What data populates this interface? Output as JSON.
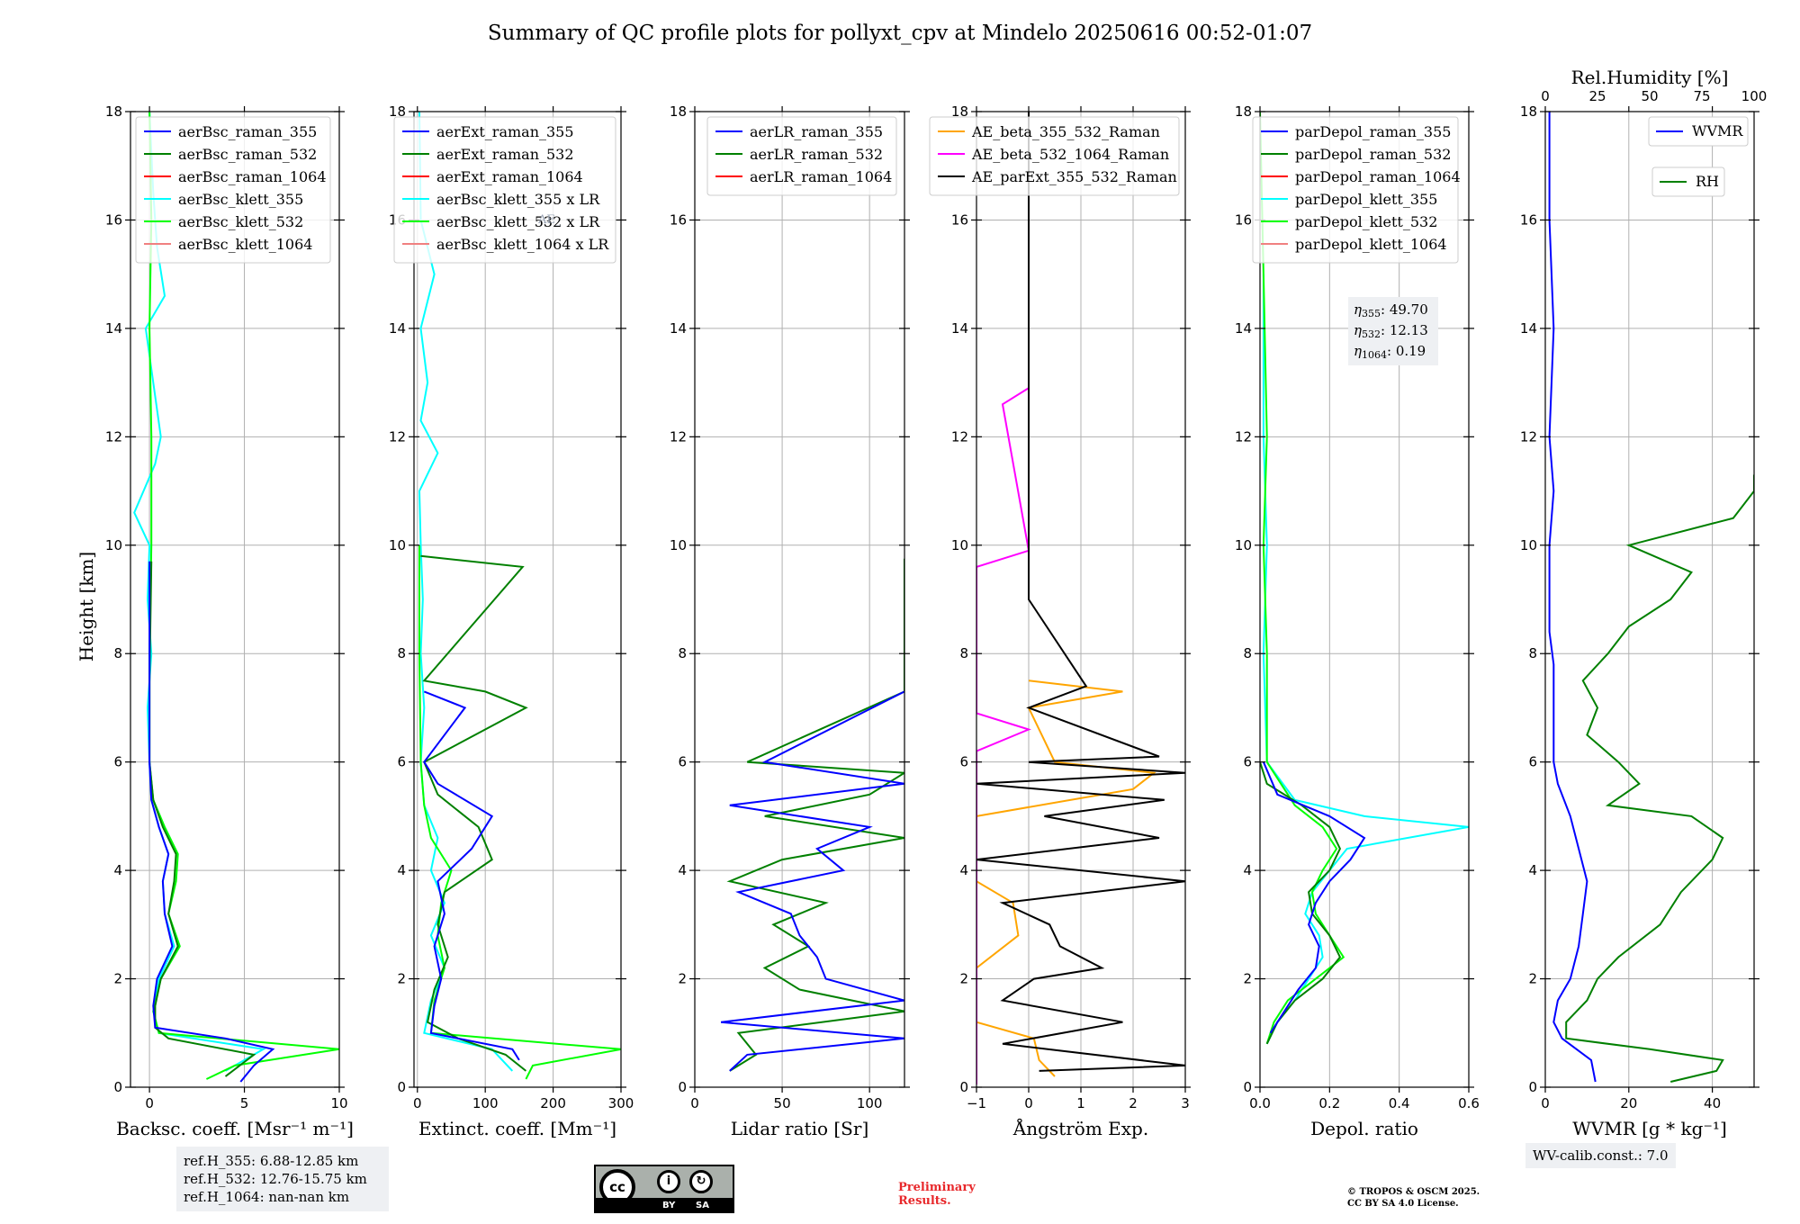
{
  "chart_data": {
    "type": "line",
    "title": "Summary of QC profile plots for pollyxt_cpv at Mindelo 20250616 00:52-01:07",
    "ylabel": "Height [km]",
    "ylim": [
      0,
      18
    ],
    "yticks": [
      0,
      2,
      4,
      6,
      8,
      10,
      12,
      14,
      16,
      18
    ],
    "panels": [
      {
        "xlabel": "Backsc. coeff. [Msr⁻¹ m⁻¹]",
        "xlim": [
          -1,
          10
        ],
        "xticks": [
          0,
          5,
          10
        ],
        "legend": [
          "aerBsc_raman_355",
          "aerBsc_raman_532",
          "aerBsc_raman_1064",
          "aerBsc_klett_355",
          "aerBsc_klett_532",
          "aerBsc_klett_1064"
        ],
        "series": [
          {
            "name": "aerBsc_klett_355",
            "color": "#00ffff",
            "h": [
              0.3,
              0.7,
              1.0,
              1.4,
              2.0,
              2.6,
              3.2,
              3.8,
              4.3,
              4.8,
              5.3,
              6.0,
              7.0,
              8.0,
              9.0,
              10.0,
              10.6,
              11.5,
              12.0,
              13.0,
              14.0,
              14.6,
              15.5,
              16.5,
              18.0
            ],
            "v": [
              4.0,
              6.0,
              0.5,
              0.2,
              0.5,
              1.3,
              0.8,
              0.7,
              1.0,
              0.5,
              0.1,
              0.0,
              -0.1,
              0.1,
              -0.1,
              0.0,
              -0.8,
              0.3,
              0.6,
              0.2,
              -0.2,
              0.8,
              0.4,
              0.2,
              0.0
            ]
          },
          {
            "name": "aerBsc_klett_532",
            "color": "#00ff00",
            "h": [
              0.15,
              0.4,
              0.7,
              1.0,
              1.4,
              2.0,
              2.6,
              3.2,
              3.8,
              4.3,
              4.8,
              5.3,
              6.0,
              8.0,
              10.0,
              12.0,
              14.0,
              16.0,
              18.0
            ],
            "v": [
              3.0,
              4.5,
              10.0,
              0.5,
              0.2,
              0.6,
              1.6,
              1.0,
              1.4,
              1.5,
              0.8,
              0.2,
              0.0,
              0.0,
              0.1,
              0.1,
              0.0,
              0.1,
              0.0
            ]
          },
          {
            "name": "aerBsc_raman_532",
            "color": "#008000",
            "h": [
              0.2,
              0.6,
              0.9,
              1.1,
              1.5,
              2.0,
              2.6,
              3.2,
              3.8,
              4.3,
              4.8,
              5.3,
              6.0,
              7.5,
              9.7
            ],
            "v": [
              4.0,
              5.5,
              1.0,
              0.3,
              0.3,
              0.6,
              1.5,
              1.0,
              1.3,
              1.4,
              0.7,
              0.2,
              0.0,
              0.0,
              0.1
            ]
          },
          {
            "name": "aerBsc_raman_355",
            "color": "#0000ff",
            "h": [
              0.1,
              0.4,
              0.7,
              0.9,
              1.1,
              1.5,
              2.0,
              2.6,
              3.2,
              3.8,
              4.3,
              4.8,
              5.3,
              6.0,
              7.5,
              9.7
            ],
            "v": [
              4.8,
              5.5,
              6.5,
              4.0,
              0.3,
              0.2,
              0.4,
              1.2,
              0.8,
              0.7,
              1.0,
              0.5,
              0.1,
              0.0,
              0.0,
              0.0
            ]
          }
        ]
      },
      {
        "xlabel": "Extinct. coeff. [Mm⁻¹]",
        "xlim": [
          -5,
          300
        ],
        "xticks": [
          0,
          100,
          200,
          300
        ],
        "legend": [
          "aerExt_raman_355",
          "aerExt_raman_532",
          "aerExt_raman_1064",
          "aerBsc_klett_355 x LR",
          "aerBsc_klett_532 x LR",
          "aerBsc_klett_1064 x LR"
        ],
        "series": [
          {
            "name": "aerBsc_klett_355 x LR",
            "color": "#00ffff",
            "h": [
              0.3,
              0.7,
              1.0,
              1.6,
              2.2,
              2.8,
              3.4,
              4.0,
              4.6,
              5.2,
              6.0,
              7.0,
              8.0,
              9.0,
              10.0,
              11.0,
              11.7,
              12.3,
              13.0,
              14.0,
              15.0,
              16.0,
              18.0
            ],
            "v": [
              140,
              110,
              10,
              20,
              40,
              20,
              40,
              20,
              30,
              10,
              5,
              10,
              5,
              8,
              5,
              3,
              30,
              5,
              15,
              5,
              25,
              5,
              3
            ]
          },
          {
            "name": "aerBsc_klett_532 x LR",
            "color": "#00ff00",
            "h": [
              0.15,
              0.4,
              0.7,
              1.0,
              1.6,
              2.2,
              2.8,
              3.4,
              4.0,
              4.6,
              5.2,
              6.0,
              8.0,
              10.0
            ],
            "v": [
              160,
              170,
              300,
              20,
              25,
              40,
              30,
              35,
              50,
              20,
              10,
              5,
              3,
              3
            ]
          },
          {
            "name": "aerExt_raman_532",
            "color": "#008000",
            "h": [
              0.3,
              0.6,
              0.9,
              1.2,
              1.8,
              2.4,
              3.0,
              3.6,
              4.2,
              4.8,
              5.4,
              6.0,
              7.0,
              7.3,
              7.5,
              9.6,
              9.8
            ],
            "v": [
              160,
              130,
              60,
              15,
              25,
              45,
              30,
              40,
              110,
              90,
              30,
              10,
              160,
              100,
              10,
              155,
              5
            ]
          },
          {
            "name": "aerExt_raman_355",
            "color": "#0000ff",
            "h": [
              0.5,
              0.7,
              1.0,
              1.5,
              2.0,
              2.6,
              3.2,
              3.8,
              4.4,
              5.0,
              5.6,
              6.0,
              7.0,
              7.3
            ],
            "v": [
              150,
              140,
              20,
              25,
              35,
              25,
              40,
              30,
              80,
              110,
              30,
              10,
              70,
              10
            ]
          }
        ]
      },
      {
        "xlabel": "Lidar ratio [Sr]",
        "xlim": [
          0,
          120
        ],
        "xticks": [
          0,
          50,
          100
        ],
        "legend": [
          "aerLR_raman_355",
          "aerLR_raman_532",
          "aerLR_raman_1064"
        ],
        "series": [
          {
            "name": "aerLR_raman_532",
            "color": "#008000",
            "h": [
              0.3,
              0.6,
              1.0,
              1.4,
              1.8,
              2.2,
              2.6,
              3.0,
              3.4,
              3.8,
              4.2,
              4.6,
              5.0,
              5.4,
              5.8,
              6.0,
              7.3,
              9.75
            ],
            "v": [
              20,
              35,
              25,
              120,
              60,
              40,
              65,
              45,
              75,
              20,
              50,
              120,
              40,
              100,
              120,
              30,
              120,
              120
            ]
          },
          {
            "name": "aerLR_raman_355",
            "color": "#0000ff",
            "h": [
              0.3,
              0.6,
              0.9,
              1.2,
              1.6,
              2.0,
              2.4,
              2.8,
              3.2,
              3.6,
              4.0,
              4.4,
              4.8,
              5.2,
              5.6,
              6.0,
              7.3
            ],
            "v": [
              20,
              30,
              120,
              15,
              120,
              75,
              70,
              60,
              55,
              25,
              85,
              70,
              100,
              20,
              120,
              40,
              120
            ]
          }
        ]
      },
      {
        "xlabel": "Ångström Exp.",
        "xlim": [
          -1,
          3
        ],
        "xticks": [
          -1,
          0,
          1,
          2,
          3
        ],
        "legend": [
          "AE_beta_355_532_Raman",
          "AE_beta_532_1064_Raman",
          "AE_parExt_355_532_Raman"
        ],
        "series": [
          {
            "name": "AE_beta_355_532_Raman",
            "color": "#ffa500",
            "h": [
              0.2,
              0.5,
              0.9,
              1.2,
              2.2,
              2.8,
              3.4,
              3.8,
              5.0,
              5.5,
              5.8,
              6.0,
              7.0,
              7.3,
              7.5
            ],
            "v": [
              0.5,
              0.2,
              0.1,
              -1.0,
              -1.0,
              -0.2,
              -0.3,
              -1.0,
              -1.0,
              2.0,
              2.4,
              0.5,
              0.0,
              1.8,
              0.0
            ]
          },
          {
            "name": "AE_beta_532_1064_Raman",
            "color": "#ff00ff",
            "h": [
              0.05,
              6.2,
              6.6,
              6.9,
              7.6,
              9.6,
              9.9,
              12.6,
              12.9
            ],
            "v": [
              -1.0,
              -1.0,
              0.0,
              -1.0,
              -1.0,
              -1.0,
              0.0,
              -0.5,
              0.0
            ]
          },
          {
            "name": "AE_parExt_355_532_Raman",
            "color": "#000000",
            "h": [
              0.3,
              0.4,
              0.8,
              1.2,
              1.6,
              2.0,
              2.2,
              2.6,
              3.0,
              3.4,
              3.8,
              4.2,
              4.6,
              5.0,
              5.3,
              5.6,
              5.8,
              6.0,
              6.1,
              7.0,
              7.4,
              9.0,
              12.0,
              16.0,
              18.0
            ],
            "v": [
              0.2,
              3.0,
              -0.5,
              1.8,
              -0.5,
              0.1,
              1.4,
              0.6,
              0.4,
              -0.5,
              3.0,
              -1.0,
              2.5,
              0.3,
              2.6,
              -1.0,
              3.0,
              0.0,
              2.5,
              0.0,
              1.1,
              0.0,
              0.0,
              0.0,
              0.0
            ]
          }
        ]
      },
      {
        "xlabel": "Depol. ratio",
        "xlim": [
          0,
          0.6
        ],
        "xticks": [
          0.0,
          0.2,
          0.4,
          0.6
        ],
        "legend": [
          "parDepol_raman_355",
          "parDepol_raman_532",
          "parDepol_raman_1064",
          "parDepol_klett_355",
          "parDepol_klett_532",
          "parDepol_klett_1064"
        ],
        "annotations": [
          {
            "label": "η355",
            "value": "49.70"
          },
          {
            "label": "η532",
            "value": "12.13"
          },
          {
            "label": "η1064",
            "value": "0.19"
          }
        ],
        "series": [
          {
            "name": "parDepol_klett_355",
            "color": "#00ffff",
            "h": [
              0.8,
              1.2,
              1.6,
              2.0,
              2.4,
              2.8,
              3.2,
              3.6,
              4.0,
              4.4,
              4.8,
              5.0,
              5.3,
              6.0,
              8.0,
              10.0,
              12.0,
              15.0
            ],
            "v": [
              0.02,
              0.05,
              0.1,
              0.14,
              0.18,
              0.17,
              0.13,
              0.15,
              0.2,
              0.25,
              0.6,
              0.3,
              0.1,
              0.02,
              0.01,
              0.02,
              0.01,
              0.01
            ]
          },
          {
            "name": "parDepol_klett_532",
            "color": "#00ff00",
            "h": [
              0.8,
              1.2,
              1.6,
              2.0,
              2.4,
              2.8,
              3.2,
              3.6,
              4.0,
              4.4,
              4.8,
              5.2,
              6.0,
              8.0,
              10.0,
              12.0,
              15.0,
              18.0
            ],
            "v": [
              0.02,
              0.04,
              0.08,
              0.16,
              0.24,
              0.2,
              0.16,
              0.15,
              0.18,
              0.22,
              0.18,
              0.1,
              0.02,
              0.02,
              0.01,
              0.02,
              0.01,
              0.0
            ]
          },
          {
            "name": "parDepol_raman_532",
            "color": "#008000",
            "h": [
              0.8,
              1.2,
              1.6,
              2.0,
              2.4,
              2.8,
              3.2,
              3.6,
              4.0,
              4.4,
              4.8,
              5.2,
              5.6,
              6.0
            ],
            "v": [
              0.02,
              0.05,
              0.1,
              0.18,
              0.23,
              0.2,
              0.15,
              0.14,
              0.2,
              0.23,
              0.2,
              0.12,
              0.02,
              0.0
            ]
          },
          {
            "name": "parDepol_raman_355",
            "color": "#0000ff",
            "h": [
              1.0,
              1.4,
              1.8,
              2.2,
              2.6,
              3.0,
              3.4,
              3.8,
              4.2,
              4.6,
              5.0,
              5.4,
              6.0
            ],
            "v": [
              0.03,
              0.07,
              0.11,
              0.16,
              0.17,
              0.14,
              0.16,
              0.2,
              0.26,
              0.3,
              0.2,
              0.05,
              0.01
            ]
          }
        ]
      },
      {
        "xlabel": "WVMR [g * kg⁻¹]",
        "xlim": [
          0,
          50
        ],
        "xticks": [
          0,
          20,
          40
        ],
        "top_xlabel": "Rel.Humidity [%]",
        "top_xlim": [
          0,
          100
        ],
        "top_xticks": [
          0,
          25,
          50,
          75,
          100
        ],
        "legend": [
          "WVMR",
          "RH"
        ],
        "series": [
          {
            "name": "RH",
            "color": "#008000",
            "axis": "top",
            "h": [
              0.1,
              0.3,
              0.5,
              0.7,
              0.9,
              1.2,
              1.6,
              2.0,
              2.4,
              3.0,
              3.6,
              4.2,
              4.6,
              5.0,
              5.2,
              5.6,
              6.0,
              6.5,
              7.0,
              7.5,
              8.0,
              8.5,
              9.0,
              9.5,
              10.0,
              10.5,
              11.0,
              11.3
            ],
            "v": [
              60,
              82,
              85,
              50,
              10,
              10,
              20,
              25,
              35,
              55,
              65,
              80,
              85,
              70,
              30,
              45,
              35,
              20,
              25,
              18,
              30,
              40,
              60,
              70,
              40,
              90,
              100,
              100
            ]
          },
          {
            "name": "WVMR",
            "color": "#0000ff",
            "h": [
              0.1,
              0.5,
              0.9,
              1.2,
              1.6,
              2.0,
              2.6,
              3.2,
              3.8,
              4.4,
              5.0,
              5.6,
              6.0,
              6.6,
              7.2,
              7.8,
              8.4,
              9.0,
              10.0,
              11.0,
              12.0,
              14.0,
              16.0,
              18.0
            ],
            "v": [
              12,
              11,
              4,
              2,
              3,
              6,
              8,
              9,
              10,
              8,
              6,
              3,
              2,
              2,
              2,
              2,
              1,
              1,
              1,
              2,
              1,
              2,
              1,
              1
            ]
          }
        ]
      }
    ]
  },
  "notes": {
    "ref_h_lines": [
      "ref.H_355: 6.88-12.85 km",
      "ref.H_532: 12.76-15.75 km",
      "ref.H_1064: nan-nan km"
    ],
    "wv_calib": "WV-calib.const.: 7.0",
    "preliminary": [
      "Preliminary",
      "Results."
    ],
    "copyright": [
      "© TROPOS & OSCM 2025.",
      "CC BY SA 4.0 License."
    ],
    "license_logo": {
      "main": "cc",
      "labels": [
        "BY",
        "SA"
      ]
    },
    "legend_overlap_text": "AE_"
  }
}
